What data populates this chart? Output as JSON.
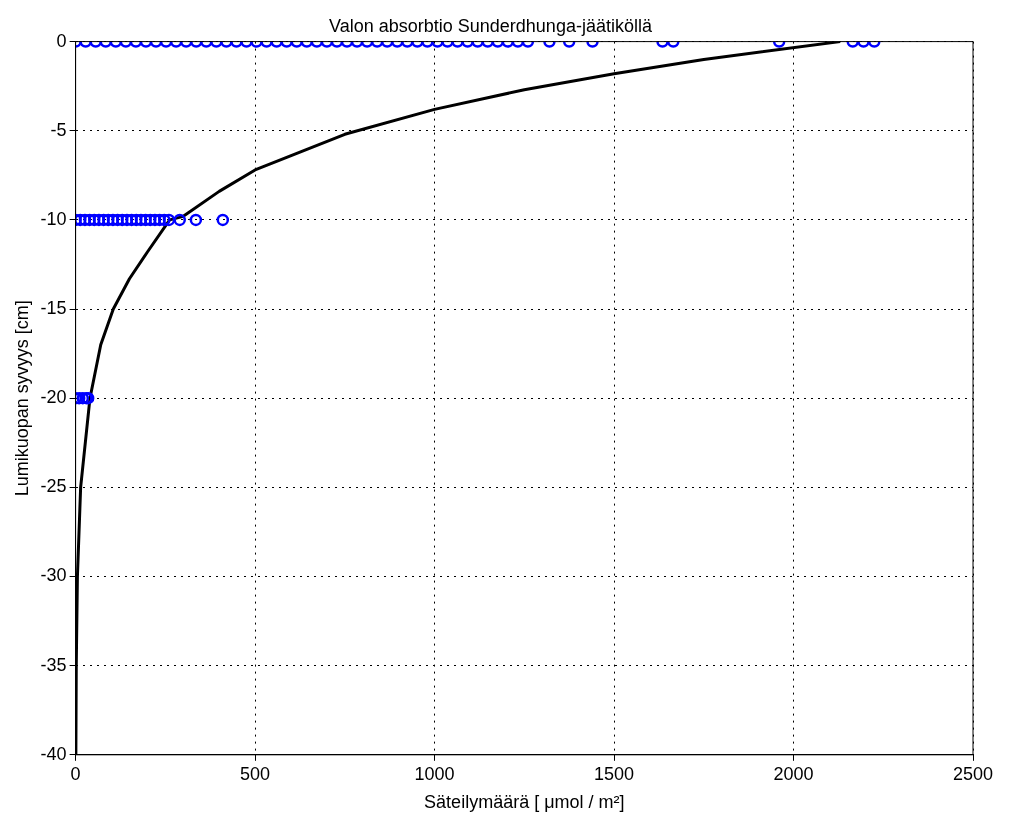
{
  "chart_data": {
    "type": "scatter",
    "title": "Valon absorbtio Sunderdhunga-jäätiköllä",
    "xlabel": "Säteilymäärä [ μmol / m²]",
    "ylabel": "Lumikuopan syvyys [cm]",
    "xlim": [
      0,
      2500
    ],
    "xticks": [
      0,
      500,
      1000,
      1500,
      2000,
      2500
    ],
    "ylim": [
      -40,
      0
    ],
    "yticks": [
      -40,
      -35,
      -30,
      -25,
      -20,
      -15,
      -10,
      -5,
      0
    ],
    "grid": true,
    "legend": false,
    "series": [
      {
        "color": "#0000ff",
        "marker": "circle",
        "x": [
          0,
          28,
          56,
          84,
          112,
          140,
          168,
          196,
          224,
          252,
          280,
          308,
          336,
          364,
          392,
          420,
          448,
          476,
          504,
          532,
          560,
          588,
          616,
          644,
          672,
          700,
          728,
          756,
          784,
          812,
          840,
          868,
          896,
          924,
          952,
          980,
          1008,
          1036,
          1064,
          1092,
          1120,
          1148,
          1176,
          1204,
          1232,
          1260,
          1320,
          1375,
          1440,
          1635,
          1665,
          1960,
          2165,
          2195,
          2225,
          0,
          13,
          26,
          39,
          52,
          65,
          78,
          91,
          104,
          117,
          130,
          143,
          156,
          169,
          182,
          195,
          208,
          221,
          234,
          247,
          260,
          290,
          335,
          410,
          0,
          10,
          20,
          30,
          35
        ],
        "values": [
          0,
          0,
          0,
          0,
          0,
          0,
          0,
          0,
          0,
          0,
          0,
          0,
          0,
          0,
          0,
          0,
          0,
          0,
          0,
          0,
          0,
          0,
          0,
          0,
          0,
          0,
          0,
          0,
          0,
          0,
          0,
          0,
          0,
          0,
          0,
          0,
          0,
          0,
          0,
          0,
          0,
          0,
          0,
          0,
          0,
          0,
          0,
          0,
          0,
          0,
          0,
          0,
          0,
          0,
          0,
          -10,
          -10,
          -10,
          -10,
          -10,
          -10,
          -10,
          -10,
          -10,
          -10,
          -10,
          -10,
          -10,
          -10,
          -10,
          -10,
          -10,
          -10,
          -10,
          -10,
          -10,
          -10,
          -10,
          -10,
          -20,
          -20,
          -20,
          -20,
          -20
        ]
      },
      {
        "type": "line",
        "color": "#000000",
        "marker": "none",
        "line_style": "solid",
        "x": [
          2130,
          1750,
          1500,
          1250,
          1000,
          750,
          500,
          400,
          300,
          262,
          200,
          150,
          105,
          70,
          40,
          14,
          5,
          1.8,
          0.7
        ],
        "values": [
          0,
          -1,
          -1.8,
          -2.7,
          -3.8,
          -5.2,
          -7.2,
          -8.4,
          -9.8,
          -10,
          -11.8,
          -13.3,
          -15,
          -17,
          -20,
          -25,
          -30,
          -35,
          -40
        ]
      }
    ]
  }
}
